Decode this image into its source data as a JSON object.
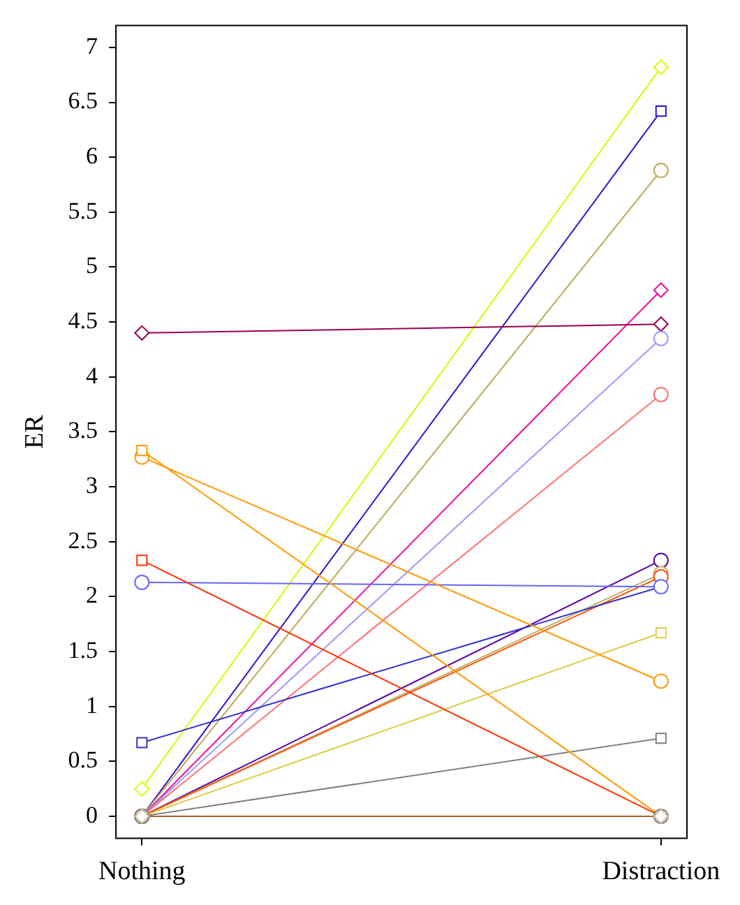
{
  "chart_data": {
    "type": "line",
    "ylabel": "ER",
    "categories": [
      "Nothing",
      "Distraction"
    ],
    "ylim": [
      -0.2,
      7.2
    ],
    "yticks": [
      0,
      0.5,
      1,
      1.5,
      2,
      2.5,
      3,
      3.5,
      4,
      4.5,
      5,
      5.5,
      6,
      6.5,
      7
    ],
    "grid": false,
    "legend": false,
    "series": [
      {
        "color": "#a0603a",
        "marker": "square",
        "values": [
          0,
          0
        ]
      },
      {
        "color": "#ccff00",
        "marker": "diamond",
        "values": [
          0.25,
          6.82
        ]
      },
      {
        "color": "#3311cc",
        "marker": "square",
        "values": [
          0,
          6.42
        ]
      },
      {
        "color": "#bbaa55",
        "marker": "circle",
        "values": [
          0,
          5.88
        ]
      },
      {
        "color": "#ee1199",
        "marker": "diamond",
        "values": [
          0,
          4.79
        ]
      },
      {
        "color": "#990055",
        "marker": "diamond",
        "values": [
          4.4,
          4.48
        ]
      },
      {
        "color": "#9999ff",
        "marker": "circle",
        "values": [
          0,
          4.35
        ]
      },
      {
        "color": "#ff7070",
        "marker": "circle",
        "values": [
          0,
          3.84
        ]
      },
      {
        "color": "#5500aa",
        "marker": "circle",
        "values": [
          0,
          2.33
        ]
      },
      {
        "color": "#c0b070",
        "marker": "circle",
        "values": [
          0,
          2.21
        ]
      },
      {
        "color": "#ff5500",
        "marker": "circle",
        "values": [
          0,
          2.18
        ]
      },
      {
        "color": "#3333cc",
        "marker": "square",
        "values": [
          0.67,
          2.09
        ]
      },
      {
        "color": "#6666ff",
        "marker": "circle",
        "values": [
          2.13,
          2.09
        ]
      },
      {
        "color": "#ddcc44",
        "marker": "square",
        "values": [
          0,
          1.67
        ]
      },
      {
        "color": "#ff9900",
        "marker": "circle",
        "values": [
          3.27,
          1.23
        ]
      },
      {
        "color": "#808080",
        "marker": "square",
        "values": [
          0,
          0.71
        ]
      },
      {
        "color": "#ff9900",
        "marker": "square",
        "values": [
          3.33,
          0
        ]
      },
      {
        "color": "#ff3300",
        "marker": "square",
        "values": [
          2.33,
          0
        ]
      },
      {
        "type": "scatter",
        "color": "#808080",
        "marker": "circle",
        "values": [
          0,
          0
        ]
      },
      {
        "type": "scatter",
        "color": "#c8c0a0",
        "marker": "diamond",
        "values": [
          0,
          0
        ]
      }
    ]
  }
}
